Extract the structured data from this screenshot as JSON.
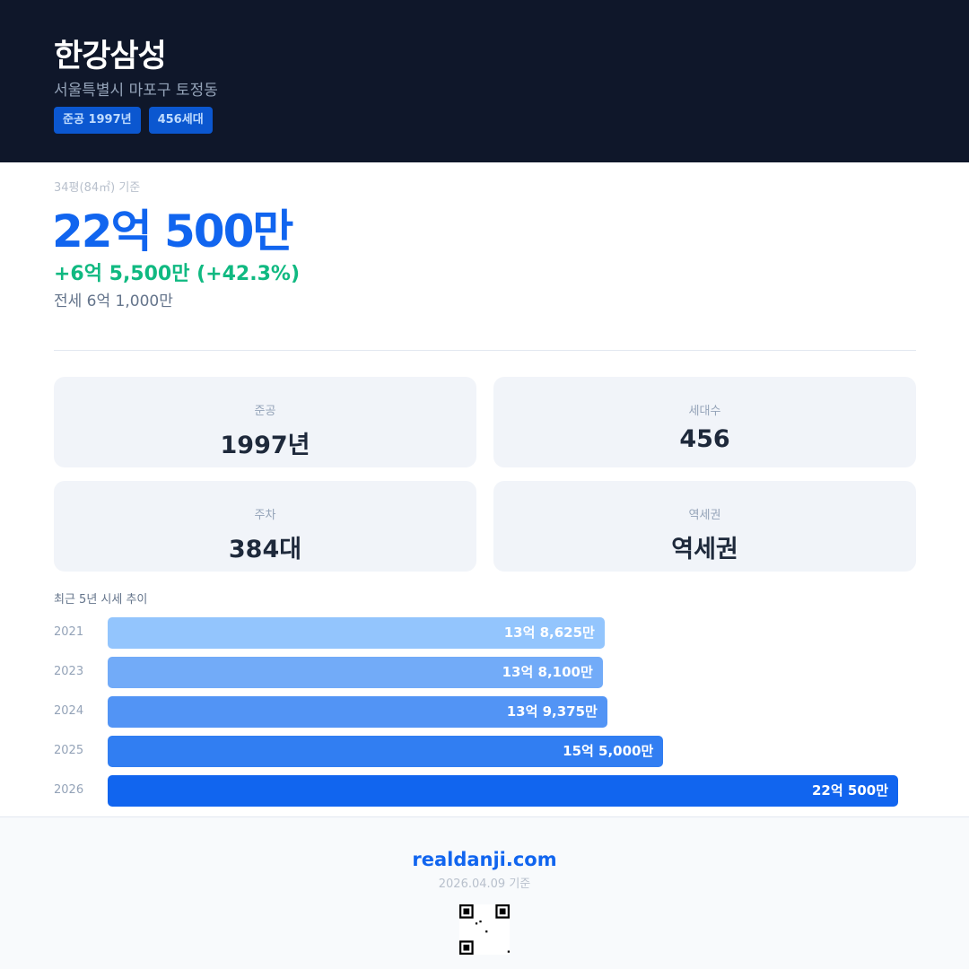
{
  "header": {
    "title": "한강삼성",
    "address": "서울특별시 마포구 토정동",
    "badges": [
      "준공 1997년",
      "456세대"
    ]
  },
  "price": {
    "basis": "34평(84㎡) 기준",
    "current": "22억 500만",
    "change": "+6억 5,500만 (+42.3%)",
    "jeonse": "전세 6억 1,000만"
  },
  "stats": [
    {
      "label": "준공",
      "value": "1997년"
    },
    {
      "label": "세대수",
      "value": "456"
    },
    {
      "label": "주차",
      "value": "384대"
    },
    {
      "label": "역세권",
      "value": "역세권"
    }
  ],
  "chart_data": {
    "type": "bar",
    "orientation": "horizontal",
    "title": "최근 5년 시세 추이",
    "categories": [
      "2021",
      "2023",
      "2024",
      "2025",
      "2026"
    ],
    "values": [
      138625,
      138100,
      139375,
      155000,
      220500
    ],
    "unit": "만원",
    "labels": [
      "13억 8,625만",
      "13억 8,100만",
      "13억 9,375만",
      "15억 5,000만",
      "22억 500만"
    ],
    "colors": [
      "#93c5fd",
      "#72abf8",
      "#5294f5",
      "#317ef2",
      "#1165ef"
    ]
  },
  "footer": {
    "site": "realdanji.com",
    "date": "2026.04.09 기준",
    "qr_icon": "qr-code-icon"
  }
}
